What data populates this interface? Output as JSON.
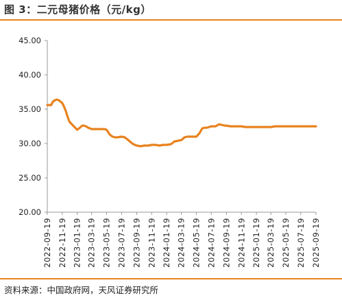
{
  "title": "图 3：二元母猪价格（元/kg）",
  "source": "资料来源：中国政府网，天风证券研究所",
  "chart_data": {
    "type": "line",
    "ylim": [
      20,
      45
    ],
    "yticks": [
      "20.00",
      "25.00",
      "30.00",
      "35.00",
      "40.00",
      "45.00"
    ],
    "yticks_values": [
      20,
      25,
      30,
      35,
      40,
      45
    ],
    "xticks": [
      "2022-09-19",
      "2022-11-19",
      "2023-01-19",
      "2023-03-19",
      "2023-05-19",
      "2023-07-19",
      "2023-09-19",
      "2023-11-19",
      "2024-01-19",
      "2024-03-19",
      "2024-05-19",
      "2024-07-19",
      "2024-09-19",
      "2024-11-19",
      "2025-01-19",
      "2025-03-19",
      "2025-05-19",
      "2025-07-19",
      "2025-09-19"
    ],
    "line_color": "#e8821e",
    "grid": false,
    "series": [
      {
        "x": [
          "2022-09-19",
          "2022-10-05",
          "2022-10-12",
          "2022-10-20",
          "2022-10-28",
          "2022-11-05",
          "2022-11-12",
          "2022-11-19",
          "2022-11-26",
          "2022-12-03",
          "2022-12-10",
          "2022-12-18",
          "2022-12-28",
          "2023-01-08",
          "2023-01-19",
          "2023-01-30",
          "2023-02-08",
          "2023-02-16",
          "2023-02-24",
          "2023-03-05",
          "2023-03-19",
          "2023-04-05",
          "2023-04-20",
          "2023-05-10",
          "2023-05-19",
          "2023-06-01",
          "2023-06-12",
          "2023-06-22",
          "2023-07-02",
          "2023-07-19",
          "2023-08-01",
          "2023-08-12",
          "2023-08-25",
          "2023-09-05",
          "2023-09-19",
          "2023-10-05",
          "2023-10-20",
          "2023-11-05",
          "2023-11-19",
          "2023-12-05",
          "2023-12-20",
          "2024-01-05",
          "2024-01-19",
          "2024-02-05",
          "2024-02-20",
          "2024-03-05",
          "2024-03-19",
          "2024-04-01",
          "2024-04-12",
          "2024-04-24",
          "2024-05-05",
          "2024-05-19",
          "2024-06-01",
          "2024-06-12",
          "2024-06-22",
          "2024-07-01",
          "2024-07-19",
          "2024-08-05",
          "2024-08-20",
          "2024-09-01",
          "2024-09-12",
          "2024-09-19",
          "2024-10-05",
          "2024-10-20",
          "2024-11-05",
          "2024-11-19",
          "2024-12-05",
          "2024-12-20",
          "2025-01-05",
          "2025-01-19",
          "2025-02-05",
          "2025-02-20",
          "2025-03-05",
          "2025-03-19",
          "2025-04-05",
          "2025-04-20",
          "2025-05-05",
          "2025-05-19",
          "2025-06-05",
          "2025-06-20",
          "2025-07-05",
          "2025-07-19",
          "2025-08-05",
          "2025-08-20",
          "2025-09-05",
          "2025-09-19"
        ],
        "values": [
          35.6,
          35.6,
          36.1,
          36.3,
          36.4,
          36.3,
          36.1,
          35.9,
          35.4,
          34.8,
          34.0,
          33.2,
          32.8,
          32.4,
          32.0,
          32.3,
          32.6,
          32.6,
          32.5,
          32.3,
          32.1,
          32.1,
          32.1,
          32.1,
          32.0,
          31.3,
          31.0,
          30.9,
          30.9,
          31.0,
          30.9,
          30.6,
          30.2,
          29.9,
          29.7,
          29.6,
          29.7,
          29.7,
          29.8,
          29.8,
          29.7,
          29.8,
          29.8,
          29.9,
          30.3,
          30.4,
          30.5,
          30.9,
          31.0,
          31.0,
          31.0,
          31.0,
          31.5,
          32.2,
          32.3,
          32.3,
          32.5,
          32.5,
          32.8,
          32.7,
          32.6,
          32.6,
          32.5,
          32.5,
          32.5,
          32.5,
          32.4,
          32.4,
          32.4,
          32.4,
          32.4,
          32.4,
          32.4,
          32.4,
          32.5,
          32.5,
          32.5,
          32.5,
          32.5,
          32.5,
          32.5,
          32.5,
          32.5,
          32.5,
          32.5,
          32.5
        ]
      }
    ]
  }
}
